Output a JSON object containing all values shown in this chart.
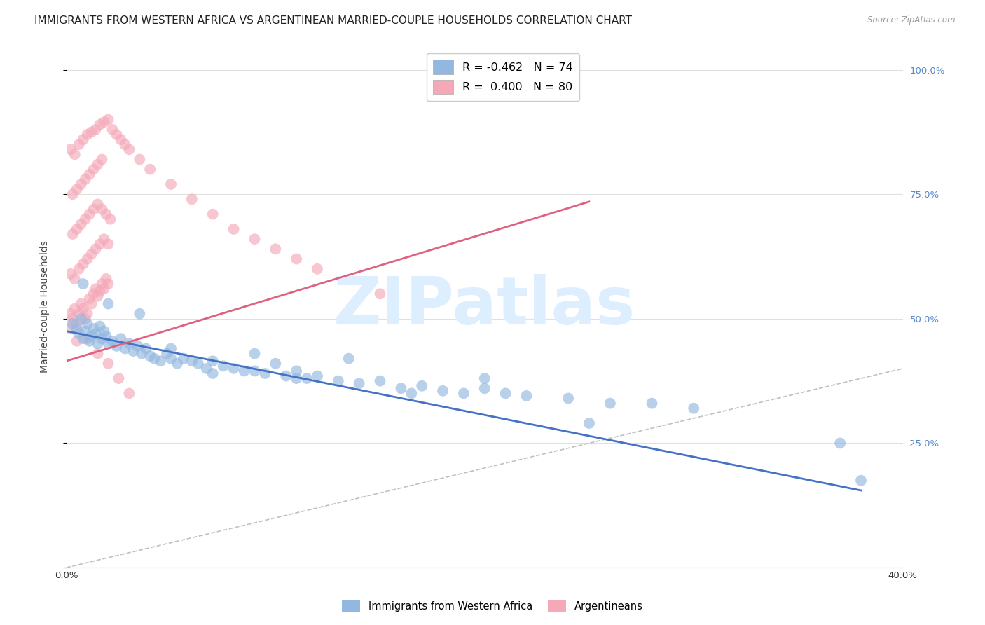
{
  "title": "IMMIGRANTS FROM WESTERN AFRICA VS ARGENTINEAN MARRIED-COUPLE HOUSEHOLDS CORRELATION CHART",
  "source": "Source: ZipAtlas.com",
  "ylabel": "Married-couple Households",
  "xlim": [
    0.0,
    0.4
  ],
  "ylim": [
    0.0,
    1.05
  ],
  "blue_R": -0.462,
  "blue_N": 74,
  "pink_R": 0.4,
  "pink_N": 80,
  "blue_color": "#92b8e0",
  "pink_color": "#f4a8b8",
  "blue_line_color": "#4472c4",
  "pink_line_color": "#e06080",
  "diagonal_color": "#c0c0c0",
  "watermark_text": "ZIPatlas",
  "watermark_color": "#ddeeff",
  "legend_label_blue": "Immigrants from Western Africa",
  "legend_label_pink": "Argentineans",
  "grid_color": "#e0e0e0",
  "title_fontsize": 11,
  "axis_label_fontsize": 10,
  "tick_fontsize": 9.5,
  "right_tick_color": "#5588cc",
  "ytick_values": [
    0.0,
    0.25,
    0.5,
    0.75,
    1.0
  ],
  "ytick_labels": [
    "",
    "25.0%",
    "50.0%",
    "75.0%",
    "100.0%"
  ],
  "blue_line_x": [
    0.0,
    0.38
  ],
  "blue_line_y": [
    0.475,
    0.155
  ],
  "pink_line_x": [
    0.0,
    0.25
  ],
  "pink_line_y": [
    0.415,
    0.735
  ],
  "blue_scatter_x": [
    0.003,
    0.005,
    0.006,
    0.007,
    0.008,
    0.009,
    0.01,
    0.011,
    0.012,
    0.013,
    0.014,
    0.015,
    0.016,
    0.017,
    0.018,
    0.019,
    0.02,
    0.022,
    0.024,
    0.026,
    0.028,
    0.03,
    0.032,
    0.034,
    0.036,
    0.038,
    0.04,
    0.042,
    0.045,
    0.048,
    0.05,
    0.053,
    0.056,
    0.06,
    0.063,
    0.067,
    0.07,
    0.075,
    0.08,
    0.085,
    0.09,
    0.095,
    0.1,
    0.105,
    0.11,
    0.115,
    0.12,
    0.13,
    0.14,
    0.15,
    0.16,
    0.17,
    0.18,
    0.19,
    0.2,
    0.21,
    0.22,
    0.24,
    0.26,
    0.28,
    0.008,
    0.02,
    0.035,
    0.05,
    0.07,
    0.09,
    0.11,
    0.135,
    0.165,
    0.2,
    0.25,
    0.3,
    0.37,
    0.38
  ],
  "blue_scatter_y": [
    0.49,
    0.48,
    0.47,
    0.5,
    0.46,
    0.475,
    0.49,
    0.455,
    0.465,
    0.48,
    0.47,
    0.45,
    0.485,
    0.46,
    0.475,
    0.465,
    0.45,
    0.455,
    0.445,
    0.46,
    0.44,
    0.45,
    0.435,
    0.445,
    0.43,
    0.44,
    0.425,
    0.42,
    0.415,
    0.43,
    0.42,
    0.41,
    0.42,
    0.415,
    0.41,
    0.4,
    0.415,
    0.405,
    0.4,
    0.395,
    0.395,
    0.39,
    0.41,
    0.385,
    0.395,
    0.38,
    0.385,
    0.375,
    0.37,
    0.375,
    0.36,
    0.365,
    0.355,
    0.35,
    0.36,
    0.35,
    0.345,
    0.34,
    0.33,
    0.33,
    0.57,
    0.53,
    0.51,
    0.44,
    0.39,
    0.43,
    0.38,
    0.42,
    0.35,
    0.38,
    0.29,
    0.32,
    0.25,
    0.175
  ],
  "pink_scatter_x": [
    0.001,
    0.002,
    0.003,
    0.004,
    0.005,
    0.006,
    0.007,
    0.008,
    0.009,
    0.01,
    0.011,
    0.012,
    0.013,
    0.014,
    0.015,
    0.016,
    0.017,
    0.018,
    0.019,
    0.02,
    0.002,
    0.004,
    0.006,
    0.008,
    0.01,
    0.012,
    0.014,
    0.016,
    0.018,
    0.02,
    0.003,
    0.005,
    0.007,
    0.009,
    0.011,
    0.013,
    0.015,
    0.017,
    0.019,
    0.021,
    0.003,
    0.005,
    0.007,
    0.009,
    0.011,
    0.013,
    0.015,
    0.017,
    0.002,
    0.004,
    0.006,
    0.008,
    0.01,
    0.012,
    0.014,
    0.016,
    0.018,
    0.02,
    0.022,
    0.024,
    0.026,
    0.028,
    0.03,
    0.035,
    0.04,
    0.05,
    0.06,
    0.07,
    0.08,
    0.09,
    0.1,
    0.11,
    0.12,
    0.15,
    0.005,
    0.01,
    0.015,
    0.02,
    0.025,
    0.03
  ],
  "pink_scatter_y": [
    0.48,
    0.51,
    0.5,
    0.52,
    0.49,
    0.51,
    0.53,
    0.52,
    0.5,
    0.51,
    0.54,
    0.53,
    0.55,
    0.56,
    0.545,
    0.555,
    0.57,
    0.56,
    0.58,
    0.57,
    0.59,
    0.58,
    0.6,
    0.61,
    0.62,
    0.63,
    0.64,
    0.65,
    0.66,
    0.65,
    0.67,
    0.68,
    0.69,
    0.7,
    0.71,
    0.72,
    0.73,
    0.72,
    0.71,
    0.7,
    0.75,
    0.76,
    0.77,
    0.78,
    0.79,
    0.8,
    0.81,
    0.82,
    0.84,
    0.83,
    0.85,
    0.86,
    0.87,
    0.875,
    0.88,
    0.89,
    0.895,
    0.9,
    0.88,
    0.87,
    0.86,
    0.85,
    0.84,
    0.82,
    0.8,
    0.77,
    0.74,
    0.71,
    0.68,
    0.66,
    0.64,
    0.62,
    0.6,
    0.55,
    0.455,
    0.46,
    0.43,
    0.41,
    0.38,
    0.35
  ]
}
